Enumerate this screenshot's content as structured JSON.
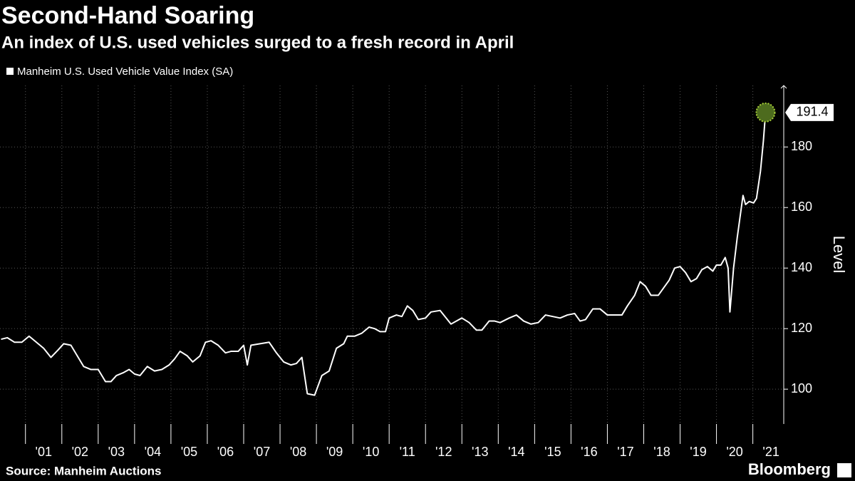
{
  "chart_data": {
    "type": "line",
    "title": "Second-Hand Soaring",
    "subtitle": "An index of U.S. used vehicles surged to a fresh record in April",
    "y_label": "Level",
    "source": "Source: Manheim Auctions",
    "brand": "Bloomberg",
    "grid": true,
    "background": "#000000",
    "xlim": [
      2000.3,
      2021.85
    ],
    "ylim": [
      88.5,
      200.3
    ],
    "yticks": [
      100,
      120,
      140,
      160,
      180
    ],
    "xticks": [
      {
        "value": 2001,
        "label": "'01"
      },
      {
        "value": 2002,
        "label": "'02"
      },
      {
        "value": 2003,
        "label": "'03"
      },
      {
        "value": 2004,
        "label": "'04"
      },
      {
        "value": 2005,
        "label": "'05"
      },
      {
        "value": 2006,
        "label": "'06"
      },
      {
        "value": 2007,
        "label": "'07"
      },
      {
        "value": 2008,
        "label": "'08"
      },
      {
        "value": 2009,
        "label": "'09"
      },
      {
        "value": 2010,
        "label": "'10"
      },
      {
        "value": 2011,
        "label": "'11"
      },
      {
        "value": 2012,
        "label": "'12"
      },
      {
        "value": 2013,
        "label": "'13"
      },
      {
        "value": 2014,
        "label": "'14"
      },
      {
        "value": 2015,
        "label": "'15"
      },
      {
        "value": 2016,
        "label": "'16"
      },
      {
        "value": 2017,
        "label": "'17"
      },
      {
        "value": 2018,
        "label": "'18"
      },
      {
        "value": 2019,
        "label": "'19"
      },
      {
        "value": 2020,
        "label": "'20"
      },
      {
        "value": 2021,
        "label": "'21"
      }
    ],
    "series": [
      {
        "name": "Manheim U.S. Used Vehicle Value Index (SA)",
        "color": "#ffffff",
        "x": [
          2000.33,
          2000.5,
          2000.7,
          2000.9,
          2001.1,
          2001.3,
          2001.5,
          2001.7,
          2001.9,
          2002.05,
          2002.25,
          2002.45,
          2002.6,
          2002.8,
          2003.0,
          2003.2,
          2003.35,
          2003.5,
          2003.7,
          2003.85,
          2004.0,
          2004.15,
          2004.35,
          2004.55,
          2004.75,
          2004.95,
          2005.1,
          2005.25,
          2005.45,
          2005.6,
          2005.8,
          2005.95,
          2006.1,
          2006.3,
          2006.5,
          2006.65,
          2006.85,
          2007.0,
          2007.1,
          2007.2,
          2007.45,
          2007.7,
          2007.9,
          2008.1,
          2008.3,
          2008.45,
          2008.6,
          2008.75,
          2008.95,
          2009.15,
          2009.35,
          2009.55,
          2009.75,
          2009.85,
          2010.05,
          2010.25,
          2010.45,
          2010.6,
          2010.75,
          2010.9,
          2011.0,
          2011.2,
          2011.35,
          2011.5,
          2011.65,
          2011.8,
          2012.0,
          2012.15,
          2012.4,
          2012.6,
          2012.7,
          2012.85,
          2013.0,
          2013.2,
          2013.4,
          2013.55,
          2013.75,
          2013.9,
          2014.05,
          2014.3,
          2014.5,
          2014.7,
          2014.9,
          2015.1,
          2015.3,
          2015.5,
          2015.7,
          2015.9,
          2016.1,
          2016.25,
          2016.4,
          2016.6,
          2016.8,
          2017.0,
          2017.2,
          2017.4,
          2017.55,
          2017.75,
          2017.9,
          2018.05,
          2018.2,
          2018.4,
          2018.55,
          2018.7,
          2018.85,
          2019.0,
          2019.15,
          2019.3,
          2019.45,
          2019.6,
          2019.75,
          2019.9,
          2020.0,
          2020.12,
          2020.24,
          2020.32,
          2020.37,
          2020.47,
          2020.57,
          2020.73,
          2020.8,
          2020.9,
          2021.02,
          2021.1,
          2021.21,
          2021.29,
          2021.35
        ],
        "values": [
          116.5,
          117,
          115.5,
          115.5,
          117.5,
          115.5,
          113.5,
          110.5,
          113,
          115,
          114.5,
          110.5,
          107.5,
          106.5,
          106.5,
          102.5,
          102.5,
          104.5,
          105.5,
          106.5,
          105,
          104.5,
          107.5,
          106,
          106.5,
          108,
          110,
          112.5,
          111,
          109,
          111,
          115.5,
          116,
          114.5,
          112,
          112.5,
          112.5,
          114.5,
          108,
          114.5,
          115,
          115.5,
          112,
          109,
          108,
          108.5,
          110.5,
          98.5,
          98,
          104.5,
          106,
          113.5,
          115,
          117.5,
          117.5,
          118.5,
          120.5,
          120,
          119,
          119,
          123.5,
          124.5,
          124,
          127.5,
          126,
          123,
          123.5,
          125.5,
          126,
          123,
          121.5,
          122.5,
          123.5,
          122,
          119.5,
          119.5,
          122.5,
          122.5,
          122,
          123.5,
          124.5,
          122.5,
          121.5,
          122,
          124.5,
          124,
          123.5,
          124.5,
          125,
          122.5,
          123,
          126.5,
          126.5,
          124.5,
          124.5,
          124.5,
          127.5,
          131,
          135.5,
          134,
          131,
          131,
          133.5,
          136,
          140,
          140.5,
          138.5,
          135.5,
          136.5,
          139.5,
          140.5,
          139,
          141,
          141,
          143.5,
          140,
          125.5,
          140,
          150,
          164,
          161,
          162,
          161.5,
          163,
          172,
          182,
          191.4
        ]
      }
    ]
  }
}
